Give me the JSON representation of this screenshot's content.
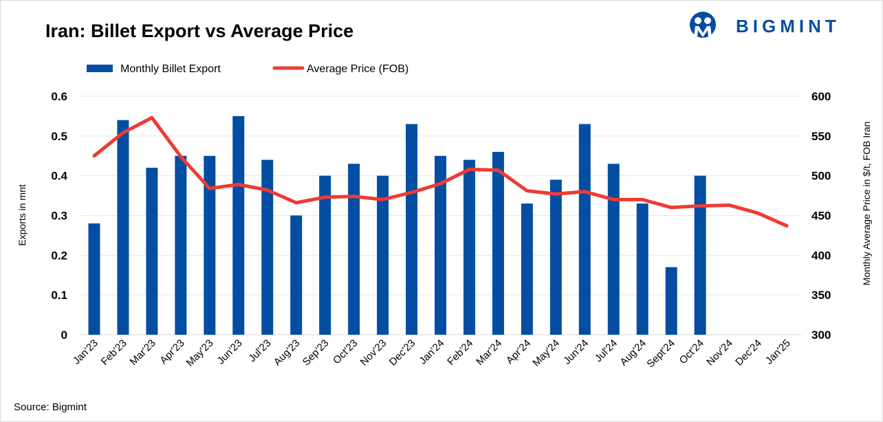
{
  "logo_text": "BIGMINT",
  "source": "Source: Bigmint",
  "colors": {
    "bar": "#034EA2",
    "line": "#EE3B33",
    "grid": "#e6e6e6"
  },
  "chart_data": {
    "type": "bar+line",
    "title": "Iran: Billet Export vs Average Price",
    "ylabel": "Exports in mnt",
    "y2label": "Monthly Average Price in $/t, FOB Iran",
    "ylim": [
      0,
      0.6
    ],
    "y2lim": [
      300,
      600
    ],
    "yticks": [
      "0",
      "0.1",
      "0.2",
      "0.3",
      "0.4",
      "0.5",
      "0.6"
    ],
    "y2ticks": [
      "300",
      "350",
      "400",
      "450",
      "500",
      "550",
      "600"
    ],
    "grid": true,
    "legend": "top-left",
    "categories": [
      "Jan'23",
      "Feb'23",
      "Mar'23",
      "Apr'23",
      "May'23",
      "Jun'23",
      "Jul'23",
      "Aug'23",
      "Sep'23",
      "Oct'23",
      "Nov'23",
      "Dec'23",
      "Jan'24",
      "Feb'24",
      "Mar'24",
      "Apr'24",
      "May'24",
      "Jun'24",
      "Jul'24",
      "Aug'24",
      "Sept'24",
      "Oct'24",
      "Nov'24",
      "Dec'24",
      "Jan'25"
    ],
    "series": [
      {
        "name": "Monthly Billet Export",
        "type": "bar",
        "axis": "left",
        "values": [
          0.28,
          0.54,
          0.42,
          0.45,
          0.45,
          0.55,
          0.44,
          0.3,
          0.4,
          0.43,
          0.4,
          0.53,
          0.45,
          0.44,
          0.46,
          0.33,
          0.39,
          0.53,
          0.43,
          0.33,
          0.17,
          0.4,
          null,
          null,
          null
        ]
      },
      {
        "name": "Average Price (FOB)",
        "type": "line",
        "axis": "right",
        "values": [
          525,
          554,
          573,
          524,
          484,
          489,
          482,
          466,
          473,
          474,
          470,
          479,
          490,
          508,
          507,
          481,
          477,
          480,
          470,
          470,
          460,
          462,
          463,
          453,
          437
        ]
      }
    ]
  }
}
